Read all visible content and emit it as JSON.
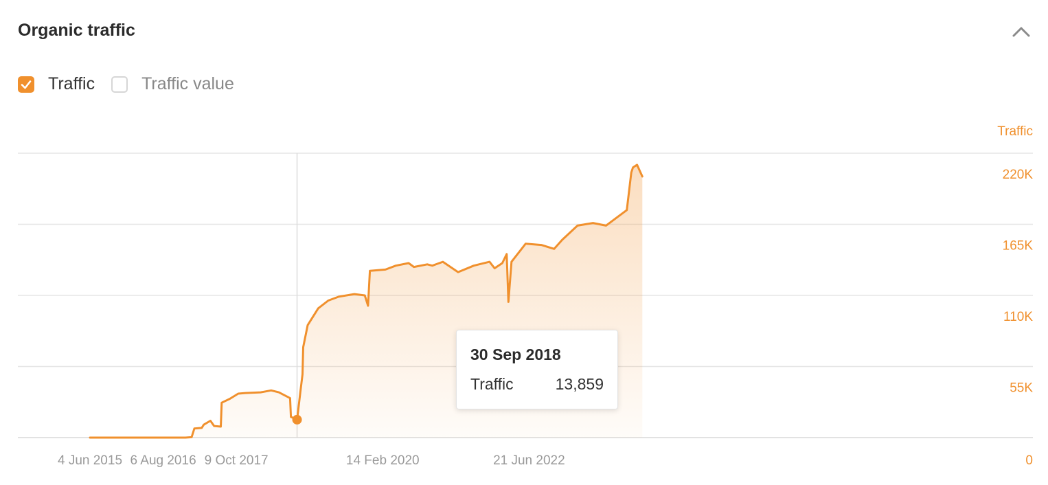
{
  "header": {
    "title": "Organic traffic"
  },
  "legend": {
    "items": [
      {
        "label": "Traffic",
        "checked": true
      },
      {
        "label": "Traffic value",
        "checked": false
      }
    ]
  },
  "colors": {
    "accent": "#f0902d",
    "grid": "#e6e6e6",
    "axis_text": "#999999"
  },
  "icons": {
    "collapse": "chevron-up-icon",
    "checkbox_checked": "checkmark-icon"
  },
  "tooltip": {
    "date": "30 Sep 2018",
    "series": "Traffic",
    "value": "13,859"
  },
  "chart_data": {
    "type": "area",
    "title": "",
    "ylabel": "Traffic",
    "xlabel": "",
    "ylim": [
      0,
      220000
    ],
    "y_ticks": [
      "0",
      "55K",
      "110K",
      "165K",
      "220K"
    ],
    "x_ticks": [
      "4 Jun 2015",
      "6 Aug 2016",
      "9 Oct 2017",
      "14 Feb 2020",
      "21 Jun 2022"
    ],
    "x_range": [
      "2015-06-04",
      "2024-04-15"
    ],
    "grid": true,
    "hover_date": "2018-09-30",
    "series": [
      {
        "name": "Traffic",
        "points": [
          [
            "2015-06-04",
            0
          ],
          [
            "2016-06-15",
            0
          ],
          [
            "2016-12-15",
            0
          ],
          [
            "2017-01-20",
            300
          ],
          [
            "2017-02-05",
            7000
          ],
          [
            "2017-03-20",
            7500
          ],
          [
            "2017-04-01",
            10000
          ],
          [
            "2017-05-10",
            13000
          ],
          [
            "2017-06-01",
            9000
          ],
          [
            "2017-07-10",
            8500
          ],
          [
            "2017-07-15",
            27000
          ],
          [
            "2017-09-01",
            30000
          ],
          [
            "2017-10-20",
            34000
          ],
          [
            "2017-12-01",
            34500
          ],
          [
            "2018-03-01",
            35000
          ],
          [
            "2018-05-01",
            36500
          ],
          [
            "2018-06-15",
            35000
          ],
          [
            "2018-08-20",
            30500
          ],
          [
            "2018-08-25",
            16000
          ],
          [
            "2018-09-30",
            13859
          ],
          [
            "2018-10-20",
            36000
          ],
          [
            "2018-11-01",
            49000
          ],
          [
            "2018-11-05",
            70000
          ],
          [
            "2018-12-01",
            87000
          ],
          [
            "2019-02-01",
            100000
          ],
          [
            "2019-04-01",
            106000
          ],
          [
            "2019-06-01",
            109000
          ],
          [
            "2019-09-01",
            111000
          ],
          [
            "2019-11-01",
            110000
          ],
          [
            "2019-11-20",
            102000
          ],
          [
            "2019-12-01",
            129000
          ],
          [
            "2020-03-01",
            130000
          ],
          [
            "2020-05-01",
            133000
          ],
          [
            "2020-07-15",
            135000
          ],
          [
            "2020-08-15",
            132000
          ],
          [
            "2020-11-01",
            134000
          ],
          [
            "2020-12-01",
            133000
          ],
          [
            "2021-02-01",
            136000
          ],
          [
            "2021-05-01",
            128000
          ],
          [
            "2021-08-01",
            133000
          ],
          [
            "2021-11-01",
            136000
          ],
          [
            "2021-12-01",
            131000
          ],
          [
            "2022-01-15",
            135000
          ],
          [
            "2022-02-10",
            142000
          ],
          [
            "2022-02-20",
            105000
          ],
          [
            "2022-03-10",
            136000
          ],
          [
            "2022-06-01",
            150000
          ],
          [
            "2022-09-01",
            149000
          ],
          [
            "2022-11-15",
            146000
          ],
          [
            "2023-01-01",
            153000
          ],
          [
            "2023-04-01",
            164000
          ],
          [
            "2023-07-01",
            166000
          ],
          [
            "2023-09-15",
            164000
          ],
          [
            "2023-11-15",
            170000
          ],
          [
            "2024-01-15",
            176000
          ],
          [
            "2024-02-10",
            205000
          ],
          [
            "2024-02-20",
            209000
          ],
          [
            "2024-03-15",
            211000
          ],
          [
            "2024-04-15",
            202000
          ]
        ]
      }
    ]
  }
}
